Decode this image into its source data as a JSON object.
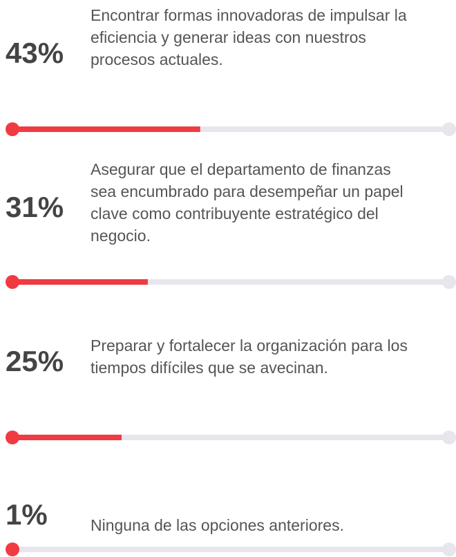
{
  "chart_data": {
    "type": "progress",
    "categories": [
      "Encontrar formas innovadoras de impulsar la eficiencia y generar ideas con nuestros procesos actuales.",
      "Asegurar que el departamento de finanzas sea encumbrado para desempeñar un papel clave como contribuyente estratégico del negocio.",
      "Preparar y fortalecer la organización para los tiempos difíciles que se avecinan.",
      "Ninguna de las opciones anteriores."
    ],
    "values": [
      43,
      31,
      25,
      1
    ],
    "value_labels": [
      "43%",
      "31%",
      "25%",
      "1%"
    ],
    "xlim": [
      0,
      100
    ],
    "color": "#ef3b41",
    "track_color": "#e6e6ec"
  }
}
